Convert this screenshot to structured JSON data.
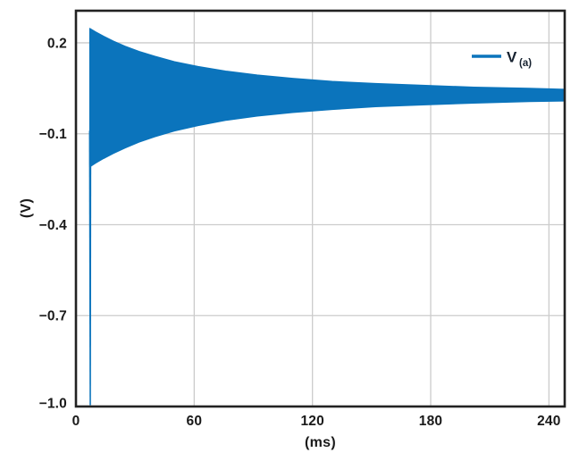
{
  "page": {
    "background": "#ffffff"
  },
  "chart_data": {
    "type": "line",
    "title": "",
    "xlabel": "(ms)",
    "ylabel": "(V)",
    "xlim": [
      0,
      248
    ],
    "ylim": [
      -1.0,
      0.306
    ],
    "xticks": [
      0,
      60,
      120,
      180,
      240
    ],
    "xtick_labels": [
      "0",
      "60",
      "120",
      "180",
      "240"
    ],
    "yticks": [
      0.2,
      -0.1,
      -0.4,
      -0.7,
      -1.0
    ],
    "ytick_labels": [
      "0.2",
      "−0.1",
      "−0.4",
      "−0.7",
      "−1.0"
    ],
    "grid": true,
    "legend": {
      "position": "top-right",
      "entries": [
        {
          "label": "V",
          "sub": "(a)",
          "color": "#0b74bc"
        }
      ]
    },
    "series": [
      {
        "name": "V(a)",
        "description": "Damped high-frequency ringing drawn as a solid envelope band: startup transient spikes down to -1.0 V at t~7 ms, oscillation amplitude decays toward a DC level of ~0.03 V",
        "color": "#0b74bc",
        "onset_ms": 7,
        "startup_spike": {
          "t_start_ms": 6.6,
          "t_end_ms": 7.8,
          "v_min": -1.0,
          "v_merge": -0.09
        },
        "envelope": {
          "t_ms": [
            7,
            10,
            14,
            19,
            25,
            32,
            40,
            50,
            62,
            76,
            92,
            110,
            130,
            152,
            176,
            202,
            230,
            248
          ],
          "upper_v": [
            0.248,
            0.236,
            0.222,
            0.206,
            0.189,
            0.172,
            0.156,
            0.138,
            0.122,
            0.107,
            0.094,
            0.083,
            0.073,
            0.066,
            0.06,
            0.054,
            0.05,
            0.047
          ],
          "lower_v": [
            -0.21,
            -0.197,
            -0.182,
            -0.165,
            -0.147,
            -0.128,
            -0.11,
            -0.091,
            -0.073,
            -0.056,
            -0.042,
            -0.03,
            -0.02,
            -0.011,
            -0.005,
            0.001,
            0.006,
            0.008
          ]
        }
      }
    ],
    "colors": {
      "line": "#0b74bc",
      "grid": "#cccccc",
      "frame": "#222222",
      "tick_text": "#1a1a1a",
      "legend_text": "#16212f",
      "background": "#ffffff"
    }
  }
}
